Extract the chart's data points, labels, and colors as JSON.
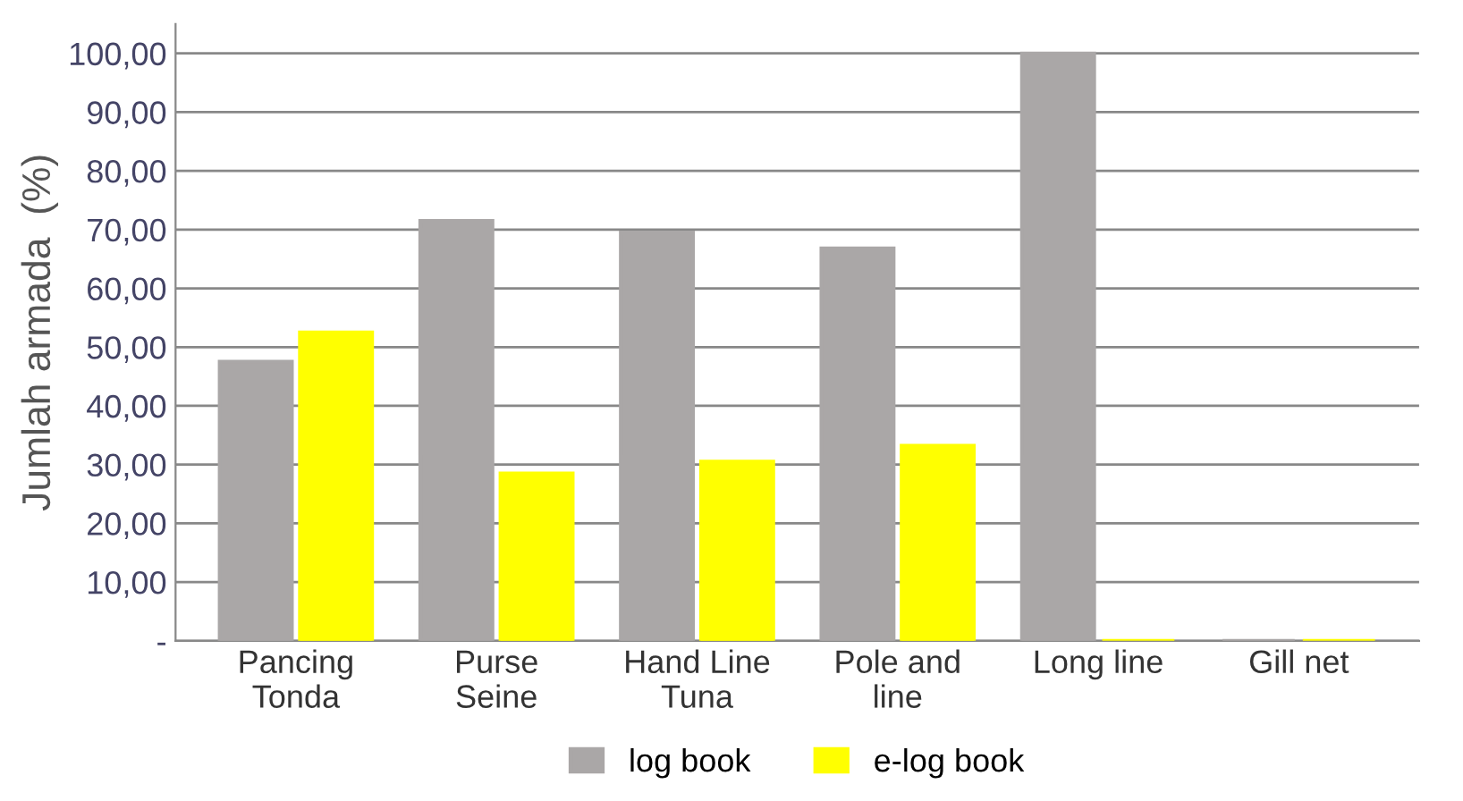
{
  "chart_data": {
    "type": "bar",
    "ylabel": "Jumlah armada  (%)",
    "categories": [
      "Pancing\nTonda",
      "Purse\nSeine",
      "Hand Line\nTuna",
      "Pole and\nline",
      "Long line",
      "Gill net"
    ],
    "series": [
      {
        "name": "log book",
        "color": "#aaa7a7",
        "values": [
          47.5,
          71.5,
          69.5,
          66.8,
          100,
          0
        ]
      },
      {
        "name": "e-log book",
        "color": "#ffff00",
        "values": [
          52.5,
          28.5,
          30.5,
          33.2,
          0,
          0
        ]
      }
    ],
    "ylim": [
      0,
      105
    ],
    "yticks": [
      {
        "value": 0,
        "label": "-"
      },
      {
        "value": 10,
        "label": "10,00"
      },
      {
        "value": 20,
        "label": "20,00"
      },
      {
        "value": 30,
        "label": "30,00"
      },
      {
        "value": 40,
        "label": "40,00"
      },
      {
        "value": 50,
        "label": "50,00"
      },
      {
        "value": 60,
        "label": "60,00"
      },
      {
        "value": 70,
        "label": "70,00"
      },
      {
        "value": 80,
        "label": "80,00"
      },
      {
        "value": 90,
        "label": "90,00"
      },
      {
        "value": 100,
        "label": "100,00"
      }
    ],
    "grid": "y",
    "legend": "bottom"
  }
}
